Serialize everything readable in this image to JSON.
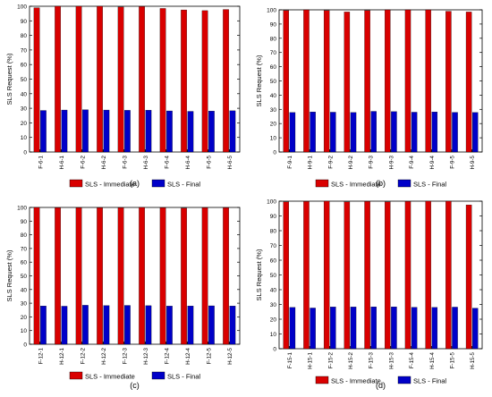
{
  "chart_data": [
    {
      "type": "bar",
      "panel_label": "(a)",
      "ylabel": "SLS Request (%)",
      "ylim": [
        0,
        100
      ],
      "yticks": [
        0,
        10,
        20,
        30,
        40,
        50,
        60,
        70,
        80,
        90,
        100
      ],
      "categories": [
        "F-6-1",
        "H-6-1",
        "F-6-2",
        "H-6-2",
        "F-6-3",
        "H-6-3",
        "F-6-4",
        "H-6-4",
        "F-6-5",
        "H-6-5"
      ],
      "series": [
        {
          "name": "SLS - Immediate",
          "color": "#d90000",
          "values": [
            99,
            100,
            100,
            100,
            99.5,
            99.8,
            98.5,
            97.5,
            97,
            97.8
          ]
        },
        {
          "name": "SLS - Final",
          "color": "#0000c8",
          "values": [
            28.5,
            28.8,
            29,
            28.8,
            28.6,
            28.7,
            28.2,
            27.9,
            28.1,
            28.3
          ]
        }
      ],
      "legend": "bottom"
    },
    {
      "type": "bar",
      "panel_label": "(b)",
      "ylabel": "SLS Request (%)",
      "ylim": [
        0,
        100
      ],
      "yticks": [
        0,
        10,
        20,
        30,
        40,
        50,
        60,
        70,
        80,
        90,
        100
      ],
      "categories": [
        "F-9-1",
        "H-9-1",
        "F-9-2",
        "H-9-2",
        "F-9-3",
        "H-9-3",
        "F-9-4",
        "H-9-4",
        "F-9-5",
        "H-9-5"
      ],
      "series": [
        {
          "name": "SLS - Immediate",
          "color": "#d90000",
          "values": [
            99.5,
            100,
            99.5,
            98.5,
            99.5,
            100,
            100,
            100,
            99,
            98.5
          ]
        },
        {
          "name": "SLS - Final",
          "color": "#0000c8",
          "values": [
            27.8,
            28.2,
            28,
            27.8,
            28.6,
            28.4,
            28,
            28.2,
            27.9,
            27.8
          ]
        }
      ],
      "legend": "bottom"
    },
    {
      "type": "bar",
      "panel_label": "(c)",
      "ylabel": "SLS Request (%)",
      "ylim": [
        0,
        100
      ],
      "yticks": [
        0,
        10,
        20,
        30,
        40,
        50,
        60,
        70,
        80,
        90,
        100
      ],
      "categories": [
        "F-12-1",
        "H-12-1",
        "F-12-2",
        "H-12-2",
        "F-12-3",
        "H-12-3",
        "F-12-4",
        "H-12-4",
        "F-12-5",
        "H-12-5"
      ],
      "series": [
        {
          "name": "SLS - Immediate",
          "color": "#d90000",
          "values": [
            100,
            99.8,
            99.8,
            99.8,
            99.8,
            100,
            99.8,
            99.5,
            99.8,
            99.8
          ]
        },
        {
          "name": "SLS - Final",
          "color": "#0000c8",
          "values": [
            28,
            27.8,
            28.5,
            28.3,
            28.4,
            28.2,
            27.9,
            28,
            28.1,
            28
          ]
        }
      ],
      "legend": "bottom"
    },
    {
      "type": "bar",
      "panel_label": "(d)",
      "ylabel": "SLS Request (%)",
      "ylim": [
        0,
        100
      ],
      "yticks": [
        0,
        10,
        20,
        30,
        40,
        50,
        60,
        70,
        80,
        90,
        100
      ],
      "categories": [
        "F-15-1",
        "H-15-1",
        "F-15-2",
        "H-15-2",
        "F-15-3",
        "H-15-3",
        "F-15-4",
        "H-15-4",
        "F-15-5",
        "H-15-5"
      ],
      "series": [
        {
          "name": "SLS - Immediate",
          "color": "#d90000",
          "values": [
            99.5,
            99.8,
            100,
            99.5,
            99.8,
            99.5,
            99.8,
            100,
            100,
            97.5
          ]
        },
        {
          "name": "SLS - Final",
          "color": "#0000c8",
          "values": [
            28,
            27.6,
            28.3,
            28.3,
            28.4,
            28.4,
            28.1,
            28,
            28.2,
            27.5
          ]
        }
      ],
      "legend": "bottom"
    }
  ]
}
